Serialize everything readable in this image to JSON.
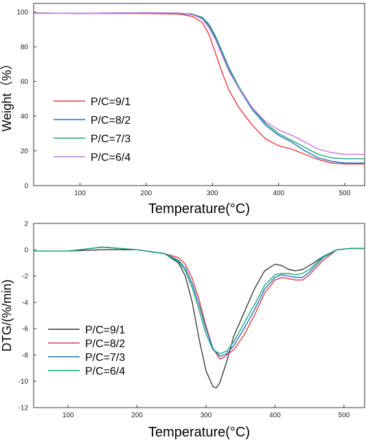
{
  "chart_data": [
    {
      "type": "line",
      "xlabel": "Temperature(°C)",
      "ylabel": "Weight（%）",
      "xlim": [
        30,
        530
      ],
      "ylim": [
        0,
        105
      ],
      "xticks": [
        "100",
        "200",
        "300",
        "400",
        "500"
      ],
      "yticks": [
        "0",
        "20",
        "40",
        "60",
        "80",
        "100"
      ],
      "legend_position": "lower-left",
      "series": [
        {
          "name": "P/C=9/1",
          "color": "#e8383d",
          "x": [
            30,
            100,
            200,
            250,
            270,
            285,
            295,
            305,
            315,
            325,
            340,
            360,
            380,
            400,
            420,
            440,
            460,
            480,
            500,
            530
          ],
          "y": [
            99.5,
            99.2,
            99.2,
            98.8,
            97.5,
            94,
            87,
            76,
            65,
            55,
            45,
            35,
            27,
            23,
            21,
            18,
            15,
            13,
            12.5,
            12.5
          ]
        },
        {
          "name": "P/C=8/2",
          "color": "#1f6fbf",
          "x": [
            30,
            100,
            200,
            250,
            270,
            285,
            295,
            305,
            315,
            325,
            340,
            360,
            380,
            400,
            420,
            440,
            460,
            480,
            500,
            530
          ],
          "y": [
            99.5,
            99.3,
            99.5,
            99.3,
            98.5,
            96.5,
            92,
            85,
            76,
            67,
            56,
            44,
            35,
            29,
            25,
            20,
            16,
            14,
            13,
            13
          ]
        },
        {
          "name": "P/C=7/3",
          "color": "#18a87a",
          "x": [
            30,
            100,
            200,
            250,
            270,
            285,
            295,
            305,
            315,
            325,
            340,
            360,
            380,
            400,
            420,
            440,
            460,
            480,
            500,
            530
          ],
          "y": [
            99.5,
            99.3,
            99.6,
            99.4,
            98.8,
            97,
            93,
            86,
            77,
            68,
            57,
            45,
            36,
            30,
            26,
            22,
            18,
            16,
            15.5,
            15.5
          ]
        },
        {
          "name": "P/C=6/4",
          "color": "#cc6fe0",
          "x": [
            30,
            100,
            200,
            250,
            270,
            285,
            295,
            305,
            315,
            325,
            340,
            360,
            380,
            400,
            420,
            440,
            460,
            480,
            500,
            530
          ],
          "y": [
            99.5,
            99.3,
            99.7,
            99.4,
            98.5,
            96,
            91,
            84,
            75,
            66,
            56,
            45,
            37,
            32,
            29,
            25,
            21,
            19,
            18,
            18
          ]
        }
      ]
    },
    {
      "type": "line",
      "xlabel": "Temperature(°C)",
      "ylabel": "DTG/(%/min)",
      "xlim": [
        50,
        530
      ],
      "ylim": [
        -12,
        2
      ],
      "xticks": [
        "100",
        "200",
        "300",
        "400",
        "500"
      ],
      "yticks": [
        "-12",
        "-10",
        "-8",
        "-6",
        "-4",
        "-2",
        "0",
        "2"
      ],
      "legend_position": "lower-left",
      "series": [
        {
          "name": "P/C=9/1",
          "color": "#3a3a3a",
          "x": [
            50,
            100,
            150,
            200,
            240,
            260,
            270,
            280,
            290,
            300,
            310,
            315,
            320,
            330,
            340,
            355,
            370,
            385,
            400,
            410,
            420,
            430,
            440,
            450,
            470,
            490,
            510,
            530
          ],
          "y": [
            -0.1,
            -0.1,
            0,
            0,
            -0.3,
            -1,
            -2,
            -4,
            -6.8,
            -9.2,
            -10.4,
            -10.5,
            -10.1,
            -8.5,
            -6.6,
            -4.8,
            -3,
            -1.6,
            -1.1,
            -1.2,
            -1.5,
            -1.6,
            -1.5,
            -1.2,
            -0.5,
            0,
            0.1,
            0.1
          ]
        },
        {
          "name": "P/C=8/2",
          "color": "#e8383d",
          "x": [
            50,
            100,
            150,
            200,
            240,
            260,
            270,
            280,
            290,
            300,
            310,
            320,
            325,
            330,
            340,
            355,
            370,
            385,
            400,
            410,
            420,
            430,
            440,
            450,
            470,
            490,
            510,
            530
          ],
          "y": [
            -0.1,
            -0.1,
            0.2,
            0,
            -0.3,
            -0.6,
            -1.1,
            -2.2,
            -3.8,
            -5.8,
            -7.5,
            -8.3,
            -8.2,
            -8,
            -7.6,
            -6.5,
            -5,
            -3.3,
            -2.3,
            -2.1,
            -2.2,
            -2.3,
            -2.3,
            -1.9,
            -0.8,
            0,
            0.1,
            0.1
          ]
        },
        {
          "name": "P/C=7/3",
          "color": "#1f6fbf",
          "x": [
            50,
            100,
            150,
            200,
            240,
            260,
            270,
            280,
            290,
            300,
            310,
            320,
            330,
            340,
            355,
            370,
            385,
            400,
            410,
            420,
            430,
            440,
            450,
            470,
            490,
            510,
            530
          ],
          "y": [
            -0.1,
            -0.1,
            0.2,
            0,
            -0.3,
            -0.8,
            -1.4,
            -2.6,
            -4.2,
            -6,
            -7.5,
            -8.1,
            -7.9,
            -7.3,
            -6,
            -4.6,
            -3,
            -2.1,
            -1.9,
            -2,
            -2.1,
            -2.1,
            -1.7,
            -0.6,
            0,
            0.1,
            0.1
          ]
        },
        {
          "name": "P/C=6/4",
          "color": "#18a87a",
          "x": [
            50,
            100,
            150,
            200,
            240,
            260,
            270,
            280,
            290,
            300,
            310,
            320,
            330,
            340,
            355,
            370,
            385,
            400,
            410,
            420,
            430,
            440,
            450,
            470,
            490,
            510,
            530
          ],
          "y": [
            -0.1,
            -0.1,
            0.2,
            0,
            -0.3,
            -0.9,
            -1.6,
            -2.9,
            -4.6,
            -6.4,
            -7.6,
            -7.9,
            -7.7,
            -7,
            -5.6,
            -4.2,
            -2.7,
            -1.9,
            -1.8,
            -1.8,
            -1.9,
            -1.8,
            -1.5,
            -0.5,
            0,
            0.1,
            0.1
          ]
        }
      ]
    }
  ]
}
